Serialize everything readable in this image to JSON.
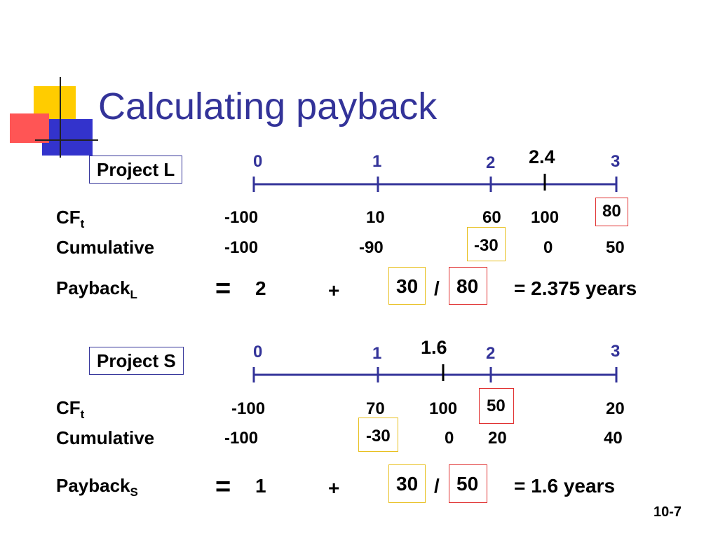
{
  "slide": {
    "title": "Calculating payback",
    "footer": "10-7",
    "colors": {
      "title": "#333399",
      "timeline": "#333399",
      "box_red": "#e03030",
      "box_yellow": "#e8c020"
    }
  },
  "project_l": {
    "name": "Project L",
    "ticks": [
      "0",
      "1",
      "2",
      "3"
    ],
    "marker": "2.4",
    "cf_label": "CF",
    "cf_sub": "t",
    "cf_values": [
      "-100",
      "10",
      "60",
      "100",
      "80"
    ],
    "cum_label": "Cumulative",
    "cum_values": [
      "-100",
      "-90",
      "-30",
      "0",
      "50"
    ],
    "payback_label": "Payback",
    "payback_sub": "L",
    "eq": "=",
    "base": "2",
    "plus": "+",
    "numerator": "30",
    "slash": "/",
    "denominator": "80",
    "result": "=  2.375 years"
  },
  "project_s": {
    "name": "Project S",
    "ticks": [
      "0",
      "1",
      "2",
      "3"
    ],
    "marker": "1.6",
    "cf_label": "CF",
    "cf_sub": "t",
    "cf_values": [
      "-100",
      "70",
      "100",
      "50",
      "20"
    ],
    "cum_label": "Cumulative",
    "cum_values": [
      "-100",
      "-30",
      "0",
      "20",
      "40"
    ],
    "payback_label": "Payback",
    "payback_sub": "S",
    "eq": "=",
    "base": "1",
    "plus": "+",
    "numerator": "30",
    "slash": "/",
    "denominator": "50",
    "result": "=  1.6 years"
  }
}
